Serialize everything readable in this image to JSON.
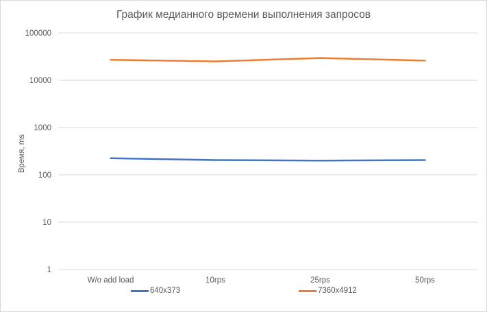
{
  "chart_data": {
    "type": "line",
    "title": "График медианного времени выполнения запросов",
    "xlabel": "",
    "ylabel": "Время, ms",
    "yscale": "log",
    "ylim": [
      1,
      100000
    ],
    "yticks": [
      "1",
      "10",
      "100",
      "1000",
      "10000",
      "100000"
    ],
    "categories": [
      "W/o add load",
      "10rps",
      "25rps",
      "50rps"
    ],
    "grid": true,
    "legend_position": "bottom",
    "series": [
      {
        "name": "640x373",
        "color": "#4472c4",
        "values": [
          225,
          205,
          200,
          205
        ]
      },
      {
        "name": "7360x4912",
        "color": "#ed7d31",
        "values": [
          27000,
          25000,
          29500,
          26000
        ]
      }
    ]
  }
}
